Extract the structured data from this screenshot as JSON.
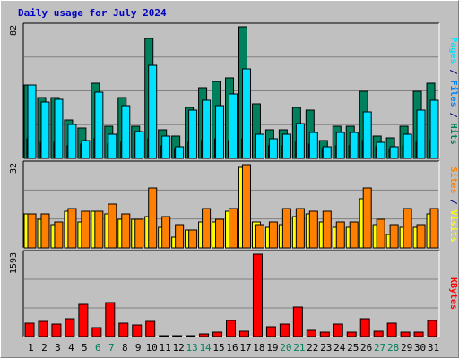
{
  "title": "Daily usage for July 2024",
  "colors": {
    "background": "#c0c0c0",
    "hits": "#00805c",
    "files": "#0080ff",
    "pages": "#00e0ff",
    "sites": "#ff8000",
    "visits": "#ffff00",
    "kbytes": "#ff0000",
    "weekend_label": "#00805c",
    "weekday_label": "#000000",
    "title": "#0000c0"
  },
  "chart_data": [
    {
      "type": "bar",
      "panel": "top",
      "ymax_label": "82",
      "ylim": [
        0,
        82
      ],
      "right_label_parts": [
        {
          "text": "Pages",
          "color": "#00e0ff"
        },
        {
          "text": " / ",
          "color": "#000080"
        },
        {
          "text": "Files",
          "color": "#0080ff"
        },
        {
          "text": " / ",
          "color": "#000080"
        },
        {
          "text": "Hits",
          "color": "#00805c"
        }
      ],
      "categories": [
        "1",
        "2",
        "3",
        "4",
        "5",
        "6",
        "7",
        "8",
        "9",
        "10",
        "11",
        "12",
        "13",
        "14",
        "15",
        "16",
        "17",
        "18",
        "19",
        "20",
        "21",
        "22",
        "23",
        "24",
        "25",
        "26",
        "27",
        "28",
        "29",
        "30",
        "31"
      ],
      "series": [
        {
          "name": "Hits",
          "values": [
            46,
            38,
            38,
            24,
            19,
            47,
            20,
            38,
            20,
            75,
            18,
            14,
            32,
            44,
            48,
            50,
            82,
            34,
            18,
            18,
            32,
            30,
            11,
            20,
            20,
            42,
            14,
            13,
            20,
            42,
            47
          ]
        },
        {
          "name": "Files",
          "values": [
            12,
            10,
            10,
            8,
            9,
            12,
            9,
            10,
            9,
            12,
            8,
            6,
            10,
            11,
            12,
            11,
            12,
            10,
            8,
            8,
            10,
            9,
            6,
            8,
            8,
            11,
            7,
            6,
            8,
            10,
            11
          ]
        },
        {
          "name": "Pages",
          "values": [
            46,
            35,
            37,
            21,
            11,
            41,
            15,
            33,
            17,
            58,
            14,
            7,
            30,
            36,
            33,
            40,
            56,
            15,
            12,
            15,
            22,
            16,
            7,
            16,
            16,
            29,
            10,
            7,
            15,
            30,
            36
          ]
        }
      ]
    },
    {
      "type": "bar",
      "panel": "middle",
      "ymax_label": "32",
      "ylim": [
        0,
        32
      ],
      "right_label_parts": [
        {
          "text": "Sites",
          "color": "#ff8000"
        },
        {
          "text": " / ",
          "color": "#000080"
        },
        {
          "text": "Visits",
          "color": "#ffff00"
        }
      ],
      "categories": [
        "1",
        "2",
        "3",
        "4",
        "5",
        "6",
        "7",
        "8",
        "9",
        "10",
        "11",
        "12",
        "13",
        "14",
        "15",
        "16",
        "17",
        "18",
        "19",
        "20",
        "21",
        "22",
        "23",
        "24",
        "25",
        "26",
        "27",
        "28",
        "29",
        "30",
        "31"
      ],
      "series": [
        {
          "name": "Visits",
          "values": [
            13,
            11,
            9,
            14,
            10,
            14,
            13,
            11,
            11,
            12,
            8,
            4,
            7,
            10,
            10,
            14,
            31,
            10,
            8,
            9,
            12,
            13,
            10,
            8,
            8,
            19,
            9,
            5,
            8,
            8,
            13
          ]
        },
        {
          "name": "Sites",
          "values": [
            13,
            13,
            10,
            15,
            14,
            14,
            17,
            13,
            11,
            23,
            12,
            9,
            7,
            15,
            11,
            15,
            32,
            9,
            10,
            15,
            15,
            14,
            14,
            10,
            10,
            23,
            11,
            9,
            15,
            9,
            15
          ]
        }
      ]
    },
    {
      "type": "bar",
      "panel": "bottom",
      "ymax_label": "1593",
      "ylim": [
        0,
        1593
      ],
      "right_label_parts": [
        {
          "text": "KBytes",
          "color": "#ff0000"
        }
      ],
      "categories": [
        "1",
        "2",
        "3",
        "4",
        "5",
        "6",
        "7",
        "8",
        "9",
        "10",
        "11",
        "12",
        "13",
        "14",
        "15",
        "16",
        "17",
        "18",
        "19",
        "20",
        "21",
        "22",
        "23",
        "24",
        "25",
        "26",
        "27",
        "28",
        "29",
        "30",
        "31"
      ],
      "series": [
        {
          "name": "KBytes",
          "values": [
            260,
            290,
            250,
            340,
            620,
            180,
            650,
            260,
            220,
            300,
            10,
            10,
            10,
            60,
            90,
            320,
            100,
            1593,
            190,
            250,
            570,
            120,
            90,
            240,
            90,
            350,
            110,
            260,
            90,
            90,
            320
          ]
        }
      ]
    }
  ],
  "x_labels": [
    "1",
    "2",
    "3",
    "4",
    "5",
    "6",
    "7",
    "8",
    "9",
    "10",
    "11",
    "12",
    "13",
    "14",
    "15",
    "16",
    "17",
    "18",
    "19",
    "20",
    "21",
    "22",
    "23",
    "24",
    "25",
    "26",
    "27",
    "28",
    "29",
    "30",
    "31"
  ],
  "weekend_days": [
    "6",
    "7",
    "13",
    "14",
    "20",
    "21",
    "27",
    "28"
  ]
}
